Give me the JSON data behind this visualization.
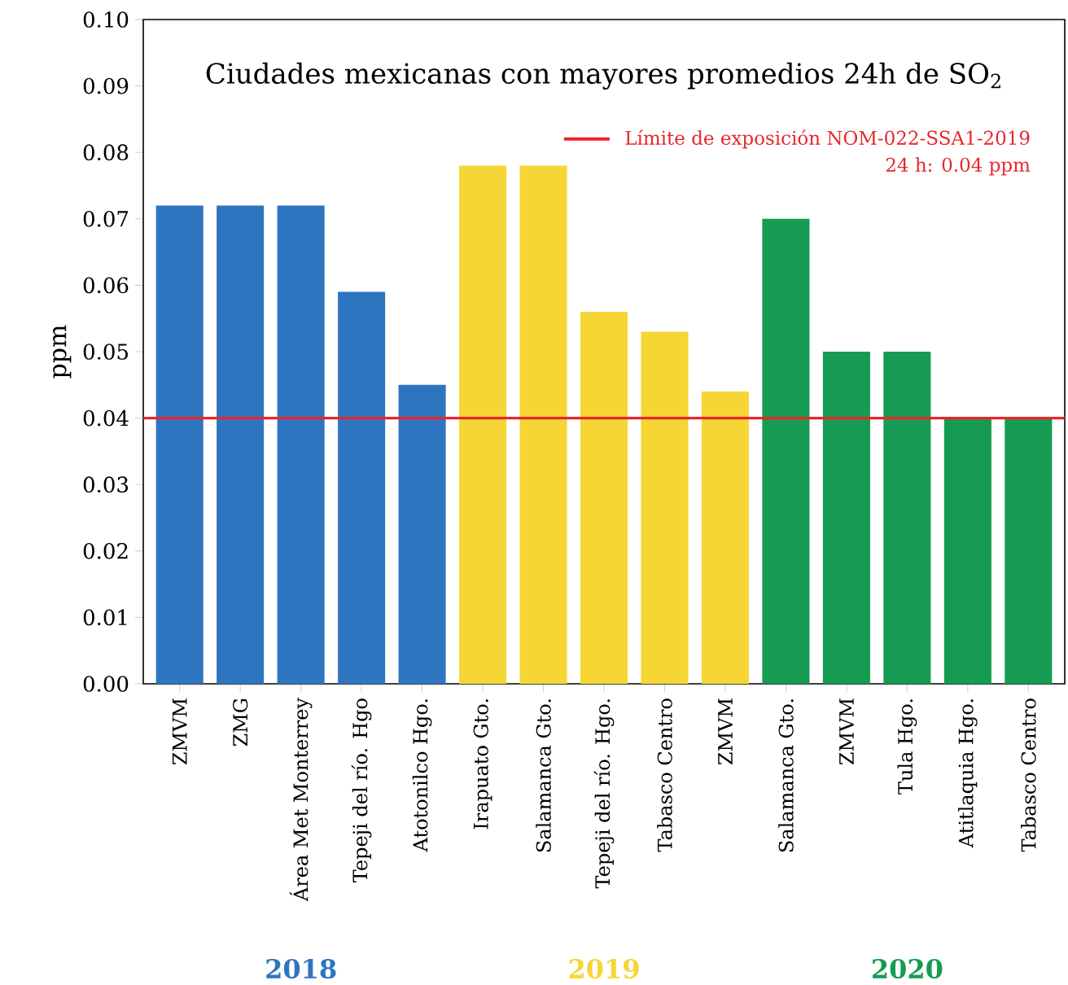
{
  "chart_data": {
    "type": "bar",
    "title": "Ciudades mexicanas con mayores promedios 24h de SO$_{2}$",
    "ylabel": "ppm",
    "categories": [
      "ZMVM",
      "ZMG",
      "Área Met Monterrey",
      "Tepeji del río. Hgo",
      "Atotonilco Hgo.",
      "Irapuato Gto.",
      "Salamanca Gto.",
      "Tepeji del río. Hgo.",
      "Tabasco Centro",
      "ZMVM",
      "Salamanca Gto.",
      "ZMVM",
      "Tula Hgo.",
      "Atitlaquia Hgo.",
      "Tabasco Centro"
    ],
    "values": [
      0.072,
      0.072,
      0.072,
      0.059,
      0.045,
      0.078,
      0.078,
      0.056,
      0.053,
      0.044,
      0.07,
      0.05,
      0.05,
      0.04,
      0.04
    ],
    "colors": [
      "#2e75c0",
      "#2e75c0",
      "#2e75c0",
      "#2e75c0",
      "#2e75c0",
      "#f5d634",
      "#f5d634",
      "#f5d634",
      "#f5d634",
      "#f5d634",
      "#169c52",
      "#169c52",
      "#169c52",
      "#169c52",
      "#169c52"
    ],
    "ylim": [
      0,
      0.1
    ],
    "yticks": [
      {
        "value": 0,
        "label": "0.00"
      },
      {
        "value": 0.01,
        "label": "0.01"
      },
      {
        "value": 0.02,
        "label": "0.02"
      },
      {
        "value": 0.03,
        "label": "0.03"
      },
      {
        "value": 0.04,
        "label": "0.04"
      },
      {
        "value": 0.05,
        "label": "0.05"
      },
      {
        "value": 0.06,
        "label": "0.06"
      },
      {
        "value": 0.07,
        "label": "0.07"
      },
      {
        "value": 0.08,
        "label": "0.08"
      },
      {
        "value": 0.09,
        "label": "0.09"
      },
      {
        "value": 0.1,
        "label": "0.10"
      }
    ],
    "ref_lines": [
      {
        "axis": "y",
        "value": 0.04,
        "label": "Límite de exposición NOM-022-SSA1-2019",
        "color": "#e8262a"
      }
    ],
    "annotations": [
      "2018",
      "2019",
      "2020",
      "24 h: 0.04 ppm"
    ],
    "legend": "top right"
  }
}
